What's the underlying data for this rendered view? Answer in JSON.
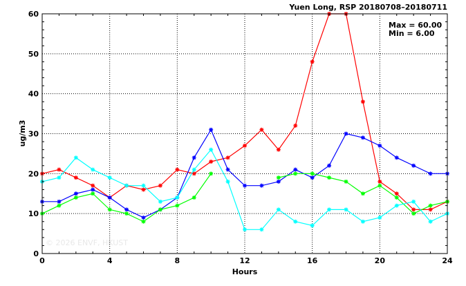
{
  "chart_data": {
    "type": "line",
    "title": "Yuen Long, RSP 20180708–20180711",
    "xlabel": "Hours",
    "ylabel": "ug/m3",
    "xlim": [
      0,
      24
    ],
    "ylim": [
      0,
      60
    ],
    "x_ticks": [
      0,
      4,
      8,
      12,
      16,
      20,
      24
    ],
    "y_ticks": [
      0,
      10,
      20,
      30,
      40,
      50,
      60
    ],
    "grid": true,
    "stats": {
      "max_text": "Max = 60.00",
      "min_text": "Min =  6.00"
    },
    "watermark": "© 2026  ENVF, HKUST",
    "x": [
      0,
      1,
      2,
      3,
      4,
      5,
      6,
      7,
      8,
      9,
      10,
      11,
      12,
      13,
      14,
      15,
      16,
      17,
      18,
      19,
      20,
      21,
      22,
      23,
      24
    ],
    "series": [
      {
        "color": "#ff0000",
        "values": [
          20,
          21,
          19,
          17,
          14,
          17,
          16,
          17,
          21,
          20,
          23,
          24,
          27,
          31,
          26,
          32,
          48,
          60,
          60,
          38,
          18,
          15,
          11,
          11,
          13
        ]
      },
      {
        "color": "#0000ff",
        "values": [
          13,
          13,
          15,
          16,
          14,
          11,
          9,
          11,
          14,
          24,
          31,
          21,
          17,
          17,
          18,
          21,
          19,
          22,
          30,
          29,
          27,
          24,
          22,
          20,
          20
        ]
      },
      {
        "color": "#00ff00",
        "values": [
          10,
          12,
          14,
          15,
          11,
          10,
          8,
          11,
          12,
          14,
          20,
          null,
          null,
          null,
          19,
          20,
          20,
          19,
          18,
          15,
          17,
          14,
          10,
          12,
          13
        ]
      },
      {
        "color": "#00ffff",
        "values": [
          18,
          19,
          24,
          21,
          19,
          17,
          17,
          13,
          14,
          21,
          26,
          18,
          6,
          6,
          11,
          8,
          7,
          11,
          11,
          8,
          9,
          12,
          13,
          8,
          10
        ]
      }
    ]
  }
}
